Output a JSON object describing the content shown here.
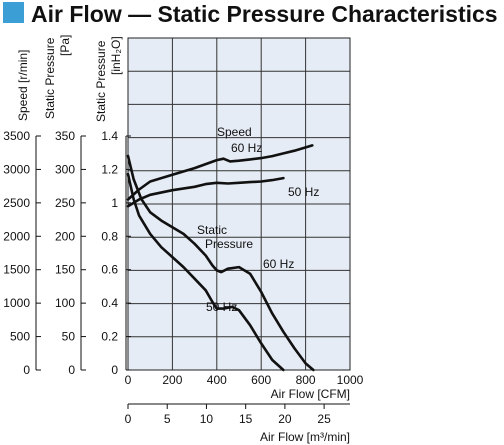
{
  "chart_data": {
    "type": "line",
    "title": "Air Flow — Static Pressure Characteristics",
    "accent_color": "#3b9fd6",
    "plot_background": "#e6ecf5",
    "grid": true,
    "axes": {
      "speed": {
        "label": "Speed [r/min]",
        "ticks": [
          0,
          500,
          1000,
          1500,
          2000,
          2500,
          3000,
          3500
        ],
        "range": [
          0,
          3500
        ]
      },
      "pressure_pa": {
        "label": "Static Pressure [Pa]",
        "ticks": [
          0,
          50,
          100,
          150,
          200,
          250,
          300,
          350
        ],
        "range": [
          0,
          350
        ]
      },
      "pressure_inh2o": {
        "label": "Static Pressure [inH₂O]",
        "ticks": [
          "0",
          "0.2",
          "0.4",
          "0.6",
          "0.8",
          "1",
          "1.2",
          "1.4"
        ],
        "range": [
          0,
          2.0
        ]
      },
      "airflow_cfm": {
        "label": "Air Flow [CFM]",
        "ticks": [
          "0",
          "200",
          "400",
          "600",
          "800",
          "1000"
        ],
        "range": [
          0,
          1000
        ]
      },
      "airflow_m3min": {
        "label": "Air Flow [m³/min]",
        "ticks": [
          "0",
          "5",
          "10",
          "15",
          "20",
          "25"
        ],
        "range": [
          0,
          28.3
        ]
      }
    },
    "annotations": {
      "speed": "Speed",
      "speed_60": "60 Hz",
      "speed_50": "50 Hz",
      "static": "Static",
      "pressure": "Pressure",
      "static_60": "60 Hz",
      "static_50": "50 Hz"
    },
    "series": [
      {
        "group": "speed",
        "hz": "60 Hz",
        "x": [
          0,
          50,
          100,
          200,
          300,
          350,
          400,
          430,
          460,
          500,
          550,
          600,
          650,
          700,
          750,
          830
        ],
        "y": [
          2550,
          2700,
          2820,
          2920,
          3020,
          3080,
          3140,
          3160,
          3120,
          3130,
          3150,
          3170,
          3200,
          3240,
          3280,
          3360
        ]
      },
      {
        "group": "speed",
        "hz": "50 Hz",
        "x": [
          0,
          50,
          100,
          200,
          300,
          350,
          400,
          450,
          500,
          550,
          600,
          650,
          700
        ],
        "y": [
          2450,
          2550,
          2620,
          2690,
          2740,
          2780,
          2800,
          2790,
          2800,
          2810,
          2820,
          2840,
          2870
        ]
      },
      {
        "group": "static",
        "hz": "60 Hz",
        "x": [
          0,
          25,
          60,
          100,
          150,
          200,
          250,
          300,
          350,
          380,
          400,
          420,
          450,
          500,
          550,
          600,
          650,
          700,
          750,
          800,
          835
        ],
        "y": [
          1.29,
          1.15,
          1.03,
          0.95,
          0.9,
          0.86,
          0.82,
          0.76,
          0.69,
          0.63,
          0.6,
          0.59,
          0.61,
          0.62,
          0.58,
          0.47,
          0.34,
          0.23,
          0.13,
          0.04,
          0.0
        ]
      },
      {
        "group": "static",
        "hz": "50 Hz",
        "x": [
          0,
          25,
          50,
          100,
          150,
          200,
          250,
          300,
          350,
          380,
          400,
          430,
          470,
          500,
          550,
          600,
          650,
          700
        ],
        "y": [
          1.18,
          1.03,
          0.93,
          0.82,
          0.74,
          0.68,
          0.62,
          0.55,
          0.48,
          0.41,
          0.37,
          0.37,
          0.38,
          0.36,
          0.27,
          0.16,
          0.06,
          0.0
        ]
      }
    ]
  }
}
